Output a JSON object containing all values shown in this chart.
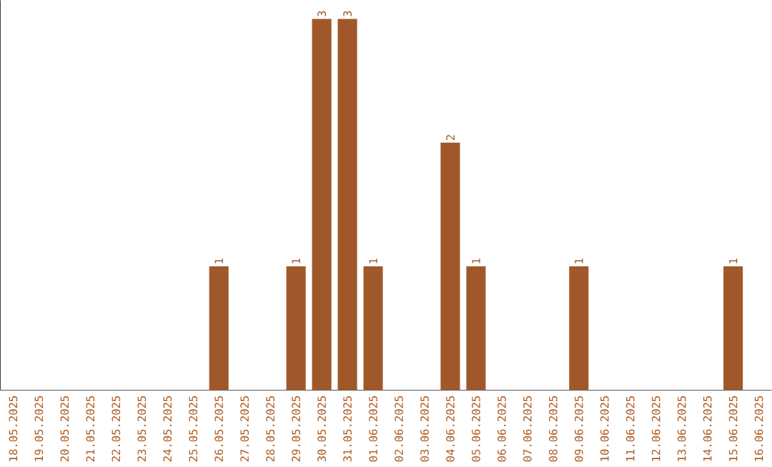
{
  "chart_data": {
    "type": "bar",
    "categories": [
      "18.05.2025",
      "19.05.2025",
      "20.05.2025",
      "21.05.2025",
      "22.05.2025",
      "23.05.2025",
      "24.05.2025",
      "25.05.2025",
      "26.05.2025",
      "27.05.2025",
      "28.05.2025",
      "29.05.2025",
      "30.05.2025",
      "31.05.2025",
      "01.06.2025",
      "02.06.2025",
      "03.06.2025",
      "04.06.2025",
      "05.06.2025",
      "06.06.2025",
      "07.06.2025",
      "08.06.2025",
      "09.06.2025",
      "10.06.2025",
      "11.06.2025",
      "12.06.2025",
      "13.06.2025",
      "14.06.2025",
      "15.06.2025",
      "16.06.2025"
    ],
    "values": [
      0,
      0,
      0,
      0,
      0,
      0,
      0,
      0,
      1,
      0,
      0,
      1,
      3,
      3,
      1,
      0,
      0,
      2,
      1,
      0,
      0,
      0,
      1,
      0,
      0,
      0,
      0,
      0,
      1,
      0
    ],
    "value_labels": [
      null,
      null,
      null,
      null,
      null,
      null,
      null,
      null,
      "1",
      null,
      null,
      "1",
      "3",
      "3",
      "1",
      null,
      null,
      "2",
      "1",
      null,
      null,
      null,
      "1",
      null,
      null,
      null,
      null,
      null,
      "1",
      null
    ],
    "color": "#a0582a",
    "ylim": [
      0,
      3.15
    ],
    "tick_labels": "x",
    "grid": false
  }
}
